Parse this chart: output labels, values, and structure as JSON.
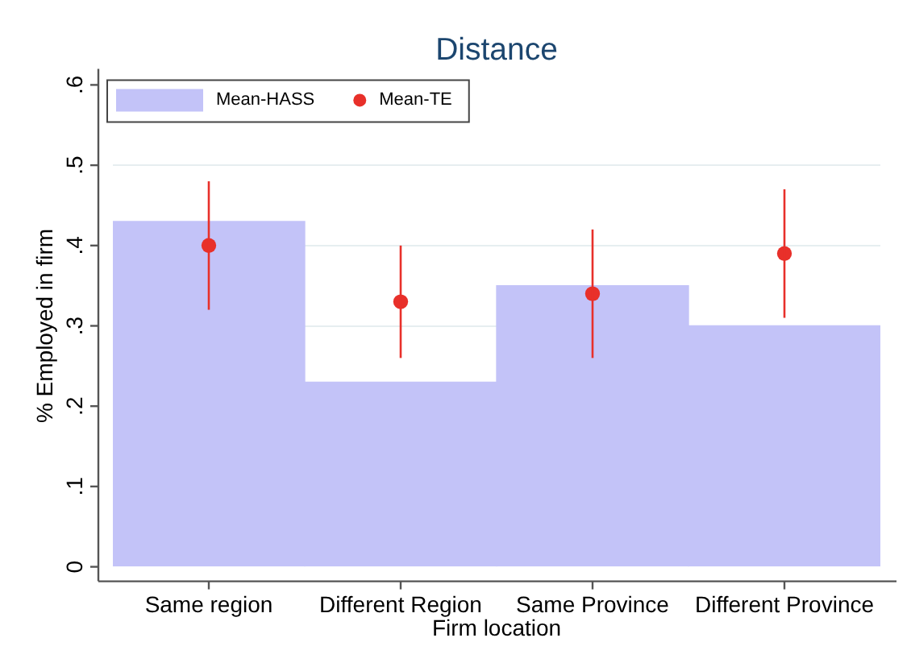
{
  "chart_data": {
    "type": "bar",
    "title": "Distance",
    "xlabel": "Firm location",
    "ylabel": "% Employed in firm",
    "categories": [
      "Same region",
      "Different Region",
      "Same Province",
      "Different Province"
    ],
    "series": [
      {
        "name": "Mean-HASS",
        "color": "#c3c3f8",
        "values": [
          0.43,
          0.23,
          0.35,
          0.3
        ]
      },
      {
        "name": "Mean-TE",
        "type": "scatter",
        "color": "#e8302a",
        "marker": "circle",
        "x": [
          "Same region",
          "Different Region",
          "Same Province",
          "Different Province"
        ],
        "values": [
          0.4,
          0.33,
          0.34,
          0.39
        ],
        "errors": [
          [
            0.32,
            0.48
          ],
          [
            0.26,
            0.4
          ],
          [
            0.26,
            0.42
          ],
          [
            0.31,
            0.47
          ]
        ]
      }
    ],
    "ylim": [
      0,
      0.6
    ],
    "yticks": [
      0,
      {
        "value": 0.1,
        "label": ".1"
      },
      {
        "value": 0.2,
        "label": ".2"
      },
      {
        "value": 0.3,
        "label": ".3"
      },
      {
        "value": 0.4,
        "label": ".4"
      },
      {
        "value": 0.5,
        "label": ".5"
      },
      {
        "value": 0.6,
        "label": ".6"
      }
    ],
    "grid": "y",
    "legend": "top left"
  }
}
